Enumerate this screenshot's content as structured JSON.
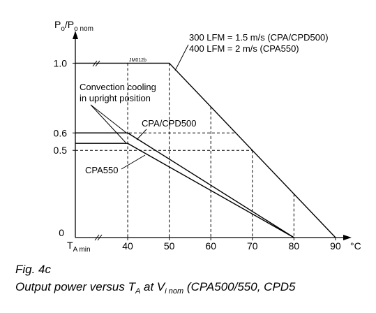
{
  "chart_data": {
    "type": "line",
    "y_label": [
      "P",
      "o",
      "/P",
      "o nom"
    ],
    "x_min_label": [
      "T",
      "A min"
    ],
    "x_unit": "°C",
    "xlim": [
      27.4,
      93.2
    ],
    "ylim": [
      0,
      1.17
    ],
    "xticks": [
      40,
      50,
      60,
      70,
      80,
      90
    ],
    "yticks": [
      0,
      0.5,
      0.6,
      {
        "value": 1,
        "label": "1.0"
      }
    ],
    "series": [
      {
        "color": "#000000",
        "x": [
          27.4,
          50,
          90
        ],
        "values": [
          1,
          1,
          0
        ]
      },
      {
        "name": "CPA/CPD500",
        "color": "#000000",
        "x": [
          27.4,
          40,
          80
        ],
        "values": [
          0.6,
          0.6,
          0
        ]
      },
      {
        "name": "CPA550",
        "color": "#000000",
        "x": [
          27.4,
          40,
          80
        ],
        "values": [
          0.54,
          0.54,
          0
        ]
      }
    ],
    "annotations": [
      "300 LFM = 1.5 m/s (CPA/CPD500)",
      "400 LFM = 2 m/s (CPA550)",
      "JM012b",
      "Convection cooling",
      "in upright position"
    ],
    "caption": {
      "fig": "Fig. 4c",
      "line": [
        "Output power versus T",
        "A",
        " at V",
        "i nom",
        " (CPA500/550, CPD5"
      ]
    }
  }
}
